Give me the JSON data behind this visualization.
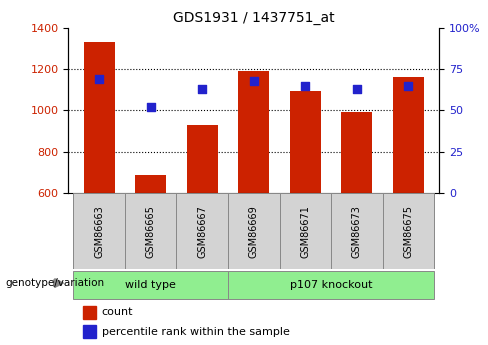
{
  "title": "GDS1931 / 1437751_at",
  "samples": [
    "GSM86663",
    "GSM86665",
    "GSM86667",
    "GSM86669",
    "GSM86671",
    "GSM86673",
    "GSM86675"
  ],
  "counts": [
    1330,
    690,
    930,
    1190,
    1095,
    990,
    1160
  ],
  "percentile_ranks": [
    69,
    52,
    63,
    68,
    65,
    63,
    65
  ],
  "ylim_left": [
    600,
    1400
  ],
  "ylim_right": [
    0,
    100
  ],
  "bar_color": "#cc2200",
  "dot_color": "#2222cc",
  "right_tick_labels": [
    "0",
    "25",
    "50",
    "75",
    "100%"
  ],
  "right_tick_values": [
    0,
    25,
    50,
    75,
    100
  ],
  "left_tick_values": [
    600,
    800,
    1000,
    1200,
    1400
  ],
  "gridlines": [
    800,
    1000,
    1200
  ],
  "wt_indices": [
    0,
    1,
    2
  ],
  "ko_indices": [
    3,
    4,
    5,
    6
  ],
  "wt_label": "wild type",
  "ko_label": "p107 knockout",
  "group_label": "genotype/variation",
  "group_color": "#90ee90",
  "sample_box_color": "#d3d3d3",
  "legend_count": "count",
  "legend_pct": "percentile rank within the sample"
}
